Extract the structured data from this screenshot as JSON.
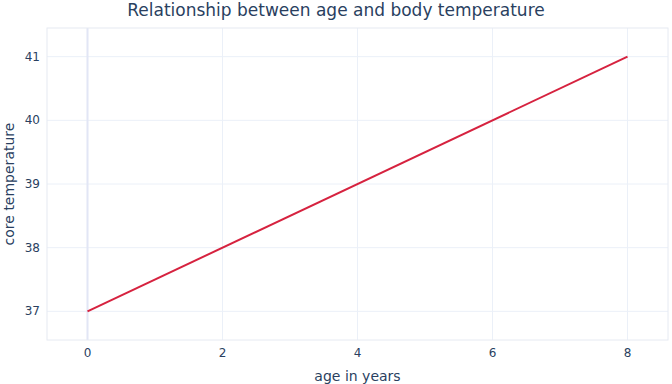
{
  "chart_data": {
    "type": "line",
    "title": "Relationship between age and body temperature",
    "x_label": "age in years",
    "y_label": "core temperature",
    "x": [
      0,
      8
    ],
    "series": [
      {
        "name": "temperature",
        "color": "#d6223f",
        "values": [
          37,
          41
        ]
      }
    ],
    "xlim": [
      -0.6,
      8.6
    ],
    "xticks": [
      0,
      2,
      4,
      6,
      8
    ],
    "ylim": [
      36.55,
      41.45
    ],
    "yticks": [
      37,
      38,
      39,
      40,
      41
    ],
    "grid": true
  }
}
